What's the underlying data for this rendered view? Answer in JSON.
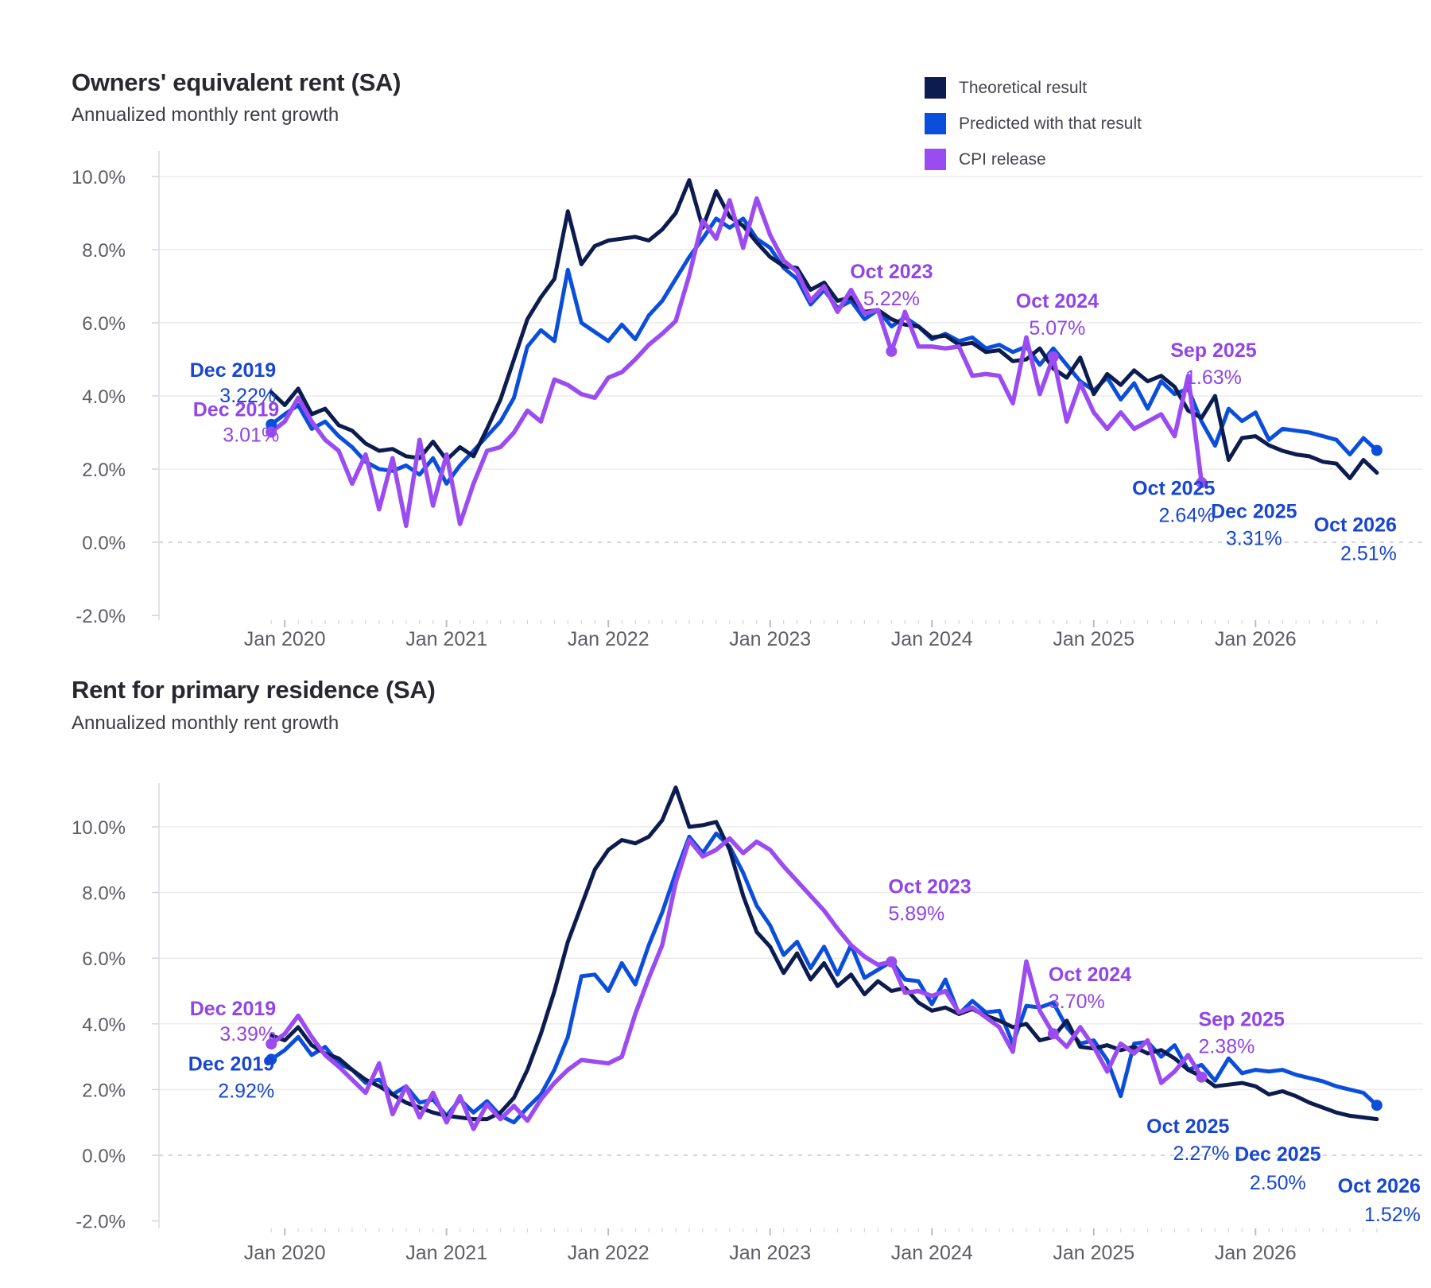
{
  "legend": {
    "position": "top-right",
    "items": [
      {
        "label": "Theoretical result",
        "color": "#0c1c4f"
      },
      {
        "label": "Predicted with that result",
        "color": "#0b4edb"
      },
      {
        "label": "CPI release",
        "color": "#9b4cf0"
      }
    ]
  },
  "chart_data": [
    {
      "type": "line",
      "title": "Owners' equivalent rent (SA)",
      "subtitle": "Annualized monthly rent growth",
      "x_start": "Dec 2019",
      "x_end": "Oct 2026",
      "x_frequency": "monthly",
      "x_tick_labels": [
        "Jan 2020",
        "Jan 2021",
        "Jan 2022",
        "Jan 2023",
        "Jan 2024",
        "Jan 2025",
        "Jan 2026"
      ],
      "y_ticks": [
        {
          "label": "10.0%",
          "value": 10
        },
        {
          "label": "8.0%",
          "value": 8
        },
        {
          "label": "6.0%",
          "value": 6
        },
        {
          "label": "4.0%",
          "value": 4
        },
        {
          "label": "2.0%",
          "value": 2
        },
        {
          "label": "0.0%",
          "value": 0
        },
        {
          "label": "-2.0%",
          "value": -2
        }
      ],
      "ylim": [
        -2.1,
        10.7
      ],
      "grid": "horizontal, zero line dashed",
      "series": [
        {
          "name": "Theoretical result",
          "key": "theoretical",
          "color": "#0c1c4f",
          "values": [
            4.1,
            3.75,
            4.2,
            3.5,
            3.65,
            3.2,
            3.05,
            2.7,
            2.5,
            2.55,
            2.35,
            2.3,
            2.75,
            2.25,
            2.6,
            2.35,
            3.1,
            3.9,
            5.0,
            6.1,
            6.7,
            7.2,
            9.05,
            7.6,
            8.1,
            8.25,
            8.3,
            8.35,
            8.25,
            8.55,
            9.0,
            9.9,
            8.6,
            9.6,
            8.9,
            8.65,
            8.2,
            7.8,
            7.55,
            7.5,
            6.9,
            7.1,
            6.6,
            6.7,
            6.3,
            6.35,
            6.1,
            5.95,
            5.9,
            5.6,
            5.65,
            5.4,
            5.45,
            5.2,
            5.25,
            4.95,
            5.0,
            5.3,
            4.75,
            4.5,
            5.05,
            4.05,
            4.6,
            4.3,
            4.7,
            4.4,
            4.55,
            4.25,
            3.6,
            3.4,
            4.0,
            2.25,
            2.85,
            2.9,
            2.65,
            2.5,
            2.4,
            2.35,
            2.2,
            2.15,
            1.75,
            2.25,
            1.9
          ]
        },
        {
          "name": "Predicted with that result",
          "key": "predicted",
          "color": "#0b4edb",
          "values": [
            3.22,
            3.5,
            3.75,
            3.1,
            3.3,
            2.9,
            2.6,
            2.2,
            2.0,
            1.95,
            2.1,
            1.85,
            2.3,
            1.6,
            2.1,
            2.5,
            2.9,
            3.3,
            3.95,
            5.35,
            5.8,
            5.5,
            7.45,
            6.0,
            5.75,
            5.5,
            5.95,
            5.55,
            6.2,
            6.6,
            7.2,
            7.8,
            8.3,
            8.85,
            8.6,
            8.85,
            8.3,
            8.05,
            7.5,
            7.2,
            6.5,
            6.9,
            6.4,
            6.6,
            6.1,
            6.35,
            5.9,
            6.15,
            5.9,
            5.55,
            5.7,
            5.5,
            5.6,
            5.3,
            5.4,
            5.2,
            5.35,
            4.85,
            5.3,
            4.85,
            4.4,
            4.15,
            4.5,
            3.9,
            4.35,
            3.65,
            4.4,
            4.05,
            4.2,
            3.3,
            2.64,
            3.65,
            3.31,
            3.55,
            2.8,
            3.1,
            3.05,
            3.0,
            2.9,
            2.8,
            2.4,
            2.85,
            2.51
          ]
        },
        {
          "name": "CPI release",
          "key": "cpi",
          "color": "#9b4cf0",
          "x_end": "Sep 2025",
          "values": [
            3.01,
            3.3,
            3.95,
            3.3,
            2.8,
            2.5,
            1.6,
            2.4,
            0.9,
            2.3,
            0.45,
            2.8,
            1.0,
            2.4,
            0.5,
            1.6,
            2.5,
            2.6,
            3.0,
            3.6,
            3.3,
            4.45,
            4.3,
            4.05,
            3.95,
            4.5,
            4.65,
            5.0,
            5.4,
            5.7,
            6.05,
            7.3,
            8.8,
            8.3,
            9.35,
            8.05,
            9.4,
            8.4,
            7.7,
            7.4,
            6.6,
            7.0,
            6.3,
            6.9,
            6.25,
            6.35,
            5.22,
            6.3,
            5.35,
            5.35,
            5.3,
            5.35,
            4.55,
            4.6,
            4.55,
            3.8,
            5.6,
            4.05,
            5.07,
            3.3,
            4.35,
            3.55,
            3.1,
            3.55,
            3.1,
            3.3,
            3.5,
            2.9,
            4.55,
            1.63
          ]
        }
      ],
      "annotations": [
        {
          "series": "predicted",
          "label": "Dec 2019",
          "value": "3.22%",
          "month_index": 0,
          "dot": true,
          "color": "#1846d1",
          "anchor": "end",
          "dx": 6,
          "dy_label": -60,
          "dy_value": -28
        },
        {
          "series": "cpi",
          "label": "Dec 2019",
          "value": "3.01%",
          "month_index": 0,
          "dot": true,
          "color": "#9145e8",
          "anchor": "end",
          "dx": 10,
          "dy_label": -20,
          "dy_value": 12
        },
        {
          "series": "cpi",
          "label": "Oct 2023",
          "value": "5.22%",
          "month_index": 46,
          "dot": true,
          "color": "#9145e8",
          "anchor": "middle",
          "dx": 0,
          "dy_label": -92,
          "dy_value": -58
        },
        {
          "series": "cpi",
          "label": "Oct 2024",
          "value": "5.07%",
          "month_index": 58,
          "dot": true,
          "color": "#9145e8",
          "anchor": "middle",
          "dx": 5,
          "dy_label": -62,
          "dy_value": -28
        },
        {
          "series": "cpi",
          "label": "Sep 2025",
          "value": "1.63%",
          "month_index": 69,
          "dot": true,
          "color": "#9145e8",
          "anchor": "middle",
          "dx": 15,
          "dy_label": -158,
          "dy_value": -124
        },
        {
          "series": "predicted",
          "label": "Oct 2025",
          "value": "2.64%",
          "month_index": 70,
          "dot": false,
          "color": "#1846d1",
          "anchor": "end",
          "dx": 0,
          "dy_label": 62,
          "dy_value": 96
        },
        {
          "series": "predicted",
          "label": "Dec 2025",
          "value": "3.31%",
          "month_index": 72,
          "dot": false,
          "color": "#1846d1",
          "anchor": "middle",
          "dx": 15,
          "dy_label": 122,
          "dy_value": 156
        },
        {
          "series": "predicted",
          "label": "Oct 2026",
          "value": "2.51%",
          "month_index": 82,
          "dot": true,
          "color": "#1846d1",
          "anchor": "end",
          "dx": 25,
          "dy_label": 102,
          "dy_value": 138
        }
      ]
    },
    {
      "type": "line",
      "title": "Rent for primary residence (SA)",
      "subtitle": "Annualized monthly rent growth",
      "x_start": "Dec 2019",
      "x_end": "Oct 2026",
      "x_frequency": "monthly",
      "x_tick_labels": [
        "Jan 2020",
        "Jan 2021",
        "Jan 2022",
        "Jan 2023",
        "Jan 2024",
        "Jan 2025",
        "Jan 2026"
      ],
      "y_ticks": [
        {
          "label": "10.0%",
          "value": 10
        },
        {
          "label": "8.0%",
          "value": 8
        },
        {
          "label": "6.0%",
          "value": 6
        },
        {
          "label": "4.0%",
          "value": 4
        },
        {
          "label": "2.0%",
          "value": 2
        },
        {
          "label": "0.0%",
          "value": 0
        },
        {
          "label": "-2.0%",
          "value": -2
        }
      ],
      "ylim": [
        -2.2,
        11.3
      ],
      "grid": "horizontal, zero line dashed",
      "series": [
        {
          "name": "Theoretical result",
          "key": "theoretical",
          "color": "#0c1c4f",
          "values": [
            3.65,
            3.5,
            3.9,
            3.35,
            3.1,
            2.95,
            2.6,
            2.3,
            2.1,
            1.85,
            1.6,
            1.45,
            1.3,
            1.2,
            1.15,
            1.1,
            1.1,
            1.3,
            1.75,
            2.6,
            3.7,
            5.0,
            6.5,
            7.6,
            8.7,
            9.3,
            9.6,
            9.5,
            9.7,
            10.2,
            11.2,
            10.0,
            10.05,
            10.15,
            9.3,
            7.9,
            6.8,
            6.35,
            5.55,
            6.15,
            5.35,
            5.85,
            5.15,
            5.5,
            4.9,
            5.3,
            5.0,
            5.1,
            4.65,
            4.4,
            4.5,
            4.3,
            4.45,
            4.25,
            4.1,
            3.9,
            4.0,
            3.5,
            3.6,
            4.1,
            3.3,
            3.25,
            3.35,
            3.2,
            3.3,
            3.1,
            3.2,
            2.95,
            2.6,
            2.4,
            2.1,
            2.15,
            2.2,
            2.1,
            1.85,
            1.95,
            1.8,
            1.6,
            1.45,
            1.3,
            1.2,
            1.15,
            1.1
          ]
        },
        {
          "name": "Predicted with that result",
          "key": "predicted",
          "color": "#0b4edb",
          "values": [
            2.92,
            3.2,
            3.6,
            3.05,
            3.3,
            2.8,
            2.6,
            2.2,
            2.3,
            1.85,
            2.1,
            1.6,
            1.7,
            1.2,
            1.7,
            1.3,
            1.65,
            1.2,
            1.0,
            1.45,
            1.85,
            2.6,
            3.6,
            5.45,
            5.5,
            5.0,
            5.85,
            5.2,
            6.4,
            7.4,
            8.6,
            9.7,
            9.2,
            9.8,
            9.4,
            8.6,
            7.6,
            7.0,
            6.1,
            6.5,
            5.7,
            6.35,
            5.5,
            6.4,
            5.4,
            5.65,
            5.9,
            5.35,
            5.3,
            4.6,
            5.35,
            4.3,
            4.7,
            4.35,
            4.4,
            3.4,
            4.55,
            4.5,
            4.65,
            3.9,
            3.4,
            3.5,
            2.9,
            1.8,
            3.4,
            3.45,
            3.0,
            3.35,
            2.6,
            2.75,
            2.27,
            2.95,
            2.5,
            2.6,
            2.55,
            2.6,
            2.45,
            2.35,
            2.25,
            2.1,
            2.0,
            1.9,
            1.52
          ]
        },
        {
          "name": "CPI release",
          "key": "cpi",
          "color": "#9b4cf0",
          "x_end": "Sep 2025",
          "values": [
            3.39,
            3.7,
            4.25,
            3.6,
            3.05,
            2.7,
            2.3,
            1.9,
            2.8,
            1.25,
            2.1,
            1.15,
            1.9,
            1.0,
            1.8,
            0.8,
            1.55,
            1.1,
            1.5,
            1.05,
            1.7,
            2.2,
            2.6,
            2.9,
            2.85,
            2.8,
            3.0,
            4.3,
            5.4,
            6.4,
            8.3,
            9.6,
            9.1,
            9.3,
            9.65,
            9.2,
            9.55,
            9.3,
            8.8,
            8.35,
            7.9,
            7.45,
            6.9,
            6.4,
            6.05,
            5.8,
            5.89,
            4.95,
            5.0,
            4.85,
            5.0,
            4.35,
            4.5,
            4.2,
            3.9,
            3.15,
            5.9,
            4.4,
            3.7,
            3.3,
            3.9,
            3.3,
            2.55,
            3.4,
            3.1,
            3.5,
            2.2,
            2.55,
            3.05,
            2.38
          ]
        }
      ],
      "annotations": [
        {
          "series": "cpi",
          "label": "Dec 2019",
          "value": "3.39%",
          "month_index": 0,
          "dot": true,
          "color": "#9145e8",
          "anchor": "end",
          "dx": 6,
          "dy_label": -36,
          "dy_value": -4
        },
        {
          "series": "predicted",
          "label": "Dec 2019",
          "value": "2.92%",
          "month_index": 0,
          "dot": true,
          "color": "#1846d1",
          "anchor": "end",
          "dx": 4,
          "dy_label": 14,
          "dy_value": 48
        },
        {
          "series": "cpi",
          "label": "Oct 2023",
          "value": "5.89%",
          "month_index": 46,
          "dot": true,
          "color": "#9145e8",
          "anchor": "start",
          "dx": -4,
          "dy_label": -86,
          "dy_value": -52
        },
        {
          "series": "cpi",
          "label": "Oct 2024",
          "value": "3.70%",
          "month_index": 58,
          "dot": true,
          "color": "#9145e8",
          "anchor": "start",
          "dx": -6,
          "dy_label": -66,
          "dy_value": -32
        },
        {
          "series": "cpi",
          "label": "Sep 2025",
          "value": "2.38%",
          "month_index": 69,
          "dot": true,
          "color": "#9145e8",
          "anchor": "start",
          "dx": -4,
          "dy_label": -64,
          "dy_value": -30
        },
        {
          "series": "predicted",
          "label": "Oct 2025",
          "value": "2.27%",
          "month_index": 70,
          "dot": false,
          "color": "#1846d1",
          "anchor": "end",
          "dx": 18,
          "dy_label": 66,
          "dy_value": 100
        },
        {
          "series": "predicted",
          "label": "Dec 2025",
          "value": "2.50%",
          "month_index": 72,
          "dot": false,
          "color": "#1846d1",
          "anchor": "middle",
          "dx": 45,
          "dy_label": 110,
          "dy_value": 146
        },
        {
          "series": "predicted",
          "label": "Oct 2026",
          "value": "1.52%",
          "month_index": 82,
          "dot": true,
          "color": "#1846d1",
          "anchor": "end",
          "dx": 55,
          "dy_label": 110,
          "dy_value": 146
        }
      ]
    }
  ]
}
